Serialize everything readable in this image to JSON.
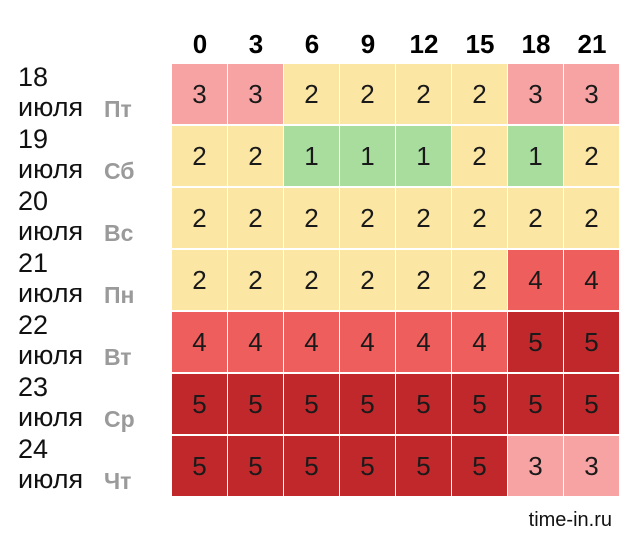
{
  "chart_data": {
    "type": "heatmap",
    "x": [
      "0",
      "3",
      "6",
      "9",
      "12",
      "15",
      "18",
      "21"
    ],
    "rows": [
      {
        "date": "18",
        "month": "июля",
        "weekday": "Пт",
        "values": [
          3,
          3,
          2,
          2,
          2,
          2,
          3,
          3
        ]
      },
      {
        "date": "19",
        "month": "июля",
        "weekday": "Сб",
        "values": [
          2,
          2,
          1,
          1,
          1,
          2,
          1,
          2
        ]
      },
      {
        "date": "20",
        "month": "июля",
        "weekday": "Вс",
        "values": [
          2,
          2,
          2,
          2,
          2,
          2,
          2,
          2
        ]
      },
      {
        "date": "21",
        "month": "июля",
        "weekday": "Пн",
        "values": [
          2,
          2,
          2,
          2,
          2,
          2,
          4,
          4
        ]
      },
      {
        "date": "22",
        "month": "июля",
        "weekday": "Вт",
        "values": [
          4,
          4,
          4,
          4,
          4,
          4,
          5,
          5
        ]
      },
      {
        "date": "23",
        "month": "июля",
        "weekday": "Ср",
        "values": [
          5,
          5,
          5,
          5,
          5,
          5,
          5,
          5
        ]
      },
      {
        "date": "24",
        "month": "июля",
        "weekday": "Чт",
        "values": [
          5,
          5,
          5,
          5,
          5,
          5,
          3,
          3
        ]
      }
    ],
    "colors": {
      "1": "#a8dd9e",
      "2": "#fbe6a4",
      "3": "#f8a3a3",
      "4": "#ee5e5c",
      "5": "#c0282b"
    }
  },
  "footer": "time-in.ru"
}
